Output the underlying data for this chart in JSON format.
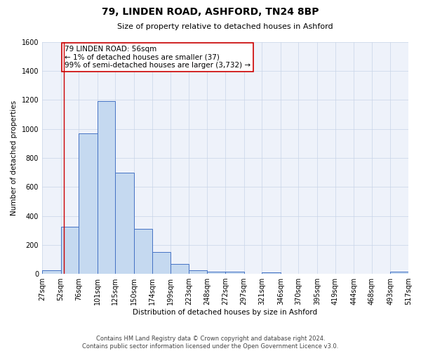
{
  "title": "79, LINDEN ROAD, ASHFORD, TN24 8BP",
  "subtitle": "Size of property relative to detached houses in Ashford",
  "xlabel": "Distribution of detached houses by size in Ashford",
  "ylabel": "Number of detached properties",
  "bin_edges": [
    27,
    52,
    76,
    101,
    125,
    150,
    174,
    199,
    223,
    248,
    272,
    297,
    321,
    346,
    370,
    395,
    419,
    444,
    468,
    493,
    517
  ],
  "bar_heights": [
    25,
    325,
    970,
    1195,
    700,
    310,
    150,
    70,
    25,
    15,
    15,
    0,
    12,
    0,
    0,
    0,
    0,
    0,
    0,
    15
  ],
  "bar_color": "#c5d9f0",
  "bar_edge_color": "#4472c4",
  "ylim": [
    0,
    1600
  ],
  "yticks": [
    0,
    200,
    400,
    600,
    800,
    1000,
    1200,
    1400,
    1600
  ],
  "property_line_x": 56,
  "property_line_color": "#cc0000",
  "annotation_line1": "79 LINDEN ROAD: 56sqm",
  "annotation_line2": "← 1% of detached houses are smaller (37)",
  "annotation_line3": "99% of semi-detached houses are larger (3,732) →",
  "footer_text": "Contains HM Land Registry data © Crown copyright and database right 2024.\nContains public sector information licensed under the Open Government Licence v3.0.",
  "background_color": "#eef2fa",
  "grid_color": "#c8d4e8",
  "title_fontsize": 10,
  "subtitle_fontsize": 8,
  "ylabel_fontsize": 7.5,
  "xlabel_fontsize": 7.5,
  "tick_fontsize": 7,
  "annot_fontsize": 7.5,
  "footer_fontsize": 6
}
